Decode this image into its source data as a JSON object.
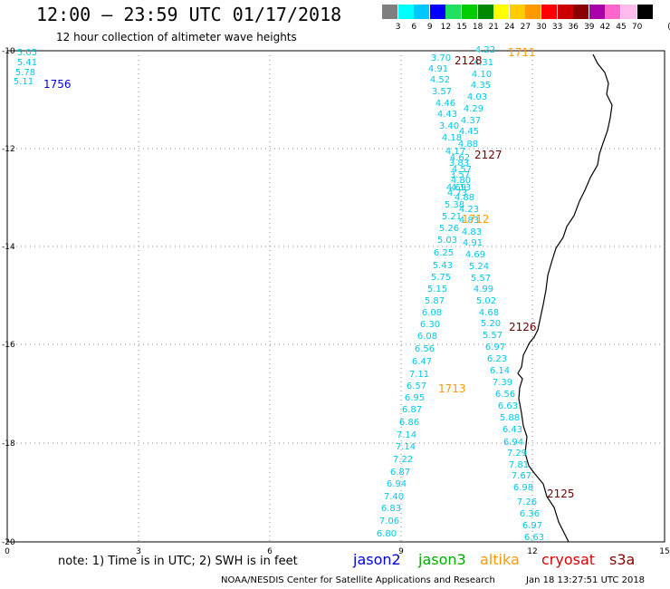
{
  "header": {
    "title": "12:00 – 23:59 UTC 01/17/2018",
    "subtitle": "12 hour collection of altimeter wave heights"
  },
  "legend": {
    "unit": "(ft)",
    "bins": [
      {
        "label": "3",
        "color": "#7f7f7f"
      },
      {
        "label": "6",
        "color": "#00ffff"
      },
      {
        "label": "9",
        "color": "#00c8ff"
      },
      {
        "label": "12",
        "color": "#0000ff"
      },
      {
        "label": "15",
        "color": "#20e060"
      },
      {
        "label": "18",
        "color": "#00cc00"
      },
      {
        "label": "21",
        "color": "#008800"
      },
      {
        "label": "24",
        "color": "#ffff00"
      },
      {
        "label": "27",
        "color": "#ffcc00"
      },
      {
        "label": "30",
        "color": "#ff9900"
      },
      {
        "label": "33",
        "color": "#ff0000"
      },
      {
        "label": "36",
        "color": "#cc0000"
      },
      {
        "label": "39",
        "color": "#8b0000"
      },
      {
        "label": "42",
        "color": "#aa00aa"
      },
      {
        "label": "45",
        "color": "#ff66cc"
      },
      {
        "label": "70",
        "color": "#ffbbee"
      },
      {
        "label": "",
        "color": "#000000"
      }
    ]
  },
  "map": {
    "x_ticks": [
      "0",
      "3",
      "6",
      "9",
      "12",
      "15"
    ],
    "y_ticks": [
      "-10",
      "-12",
      "-14",
      "-16",
      "-18",
      "-20"
    ],
    "pass_labels": [
      {
        "text": "1756",
        "color": "#0000dd"
      },
      {
        "text": "2128",
        "color": "#6b0000"
      },
      {
        "text": "1711",
        "color": "#ff9900"
      },
      {
        "text": "2127",
        "color": "#6b0000"
      },
      {
        "text": "1712",
        "color": "#ff9900"
      },
      {
        "text": "2126",
        "color": "#6b0000"
      },
      {
        "text": "1713",
        "color": "#ff9900"
      },
      {
        "text": "2125",
        "color": "#6b0000"
      }
    ],
    "wave_heights_color": "#00c8e6",
    "wave_heights": [
      "5.05",
      "5.41",
      "5.78",
      "5.11",
      "3.70",
      "4.22",
      "4.91",
      "4.31",
      "4.52",
      "4.10",
      "3.57",
      "4.35",
      "4.46",
      "4.03",
      "4.43",
      "4.29",
      "3.40",
      "4.37",
      "4.18",
      "4.45",
      "4.88",
      "4.17",
      "4.62",
      "3.83",
      "4.57",
      "3.57",
      "4.80",
      "4.69",
      "4.13",
      "4.73",
      "4.88",
      "5.38",
      "4.23",
      "5.21",
      "4.83",
      "5.26",
      "4.83",
      "5.03",
      "4.91",
      "6.25",
      "4.69",
      "5.43",
      "5.24",
      "5.75",
      "5.57",
      "5.15",
      "4.99",
      "5.87",
      "5.02",
      "6.08",
      "4.68",
      "6.30",
      "5.20",
      "6.08",
      "5.57",
      "6.56",
      "6.97",
      "6.47",
      "6.23",
      "7.11",
      "6.14",
      "6.57",
      "7.39",
      "6.95",
      "6.56",
      "6.87",
      "6.63",
      "6.86",
      "5.88",
      "7.14",
      "6.43",
      "7.14",
      "6.94",
      "7.22",
      "7.29",
      "6.87",
      "7.81",
      "6.94",
      "7.67",
      "7.40",
      "6.98",
      "6.83",
      "7.26",
      "7.06",
      "6.36",
      "6.80",
      "6.97",
      "6.63"
    ]
  },
  "footer": {
    "note": "note: 1) Time is in UTC; 2) SWH is in feet",
    "satellites": [
      {
        "name": "jason2",
        "color": "#0000dd"
      },
      {
        "name": "jason3",
        "color": "#00aa00"
      },
      {
        "name": "altika",
        "color": "#ff9900"
      },
      {
        "name": "cryosat",
        "color": "#dd0000"
      },
      {
        "name": "s3a",
        "color": "#8b0000"
      }
    ],
    "credit": "NOAA/NESDIS Center for Satellite Applications and Research",
    "timestamp": "Jan 18 13:27:51 UTC 2018"
  }
}
